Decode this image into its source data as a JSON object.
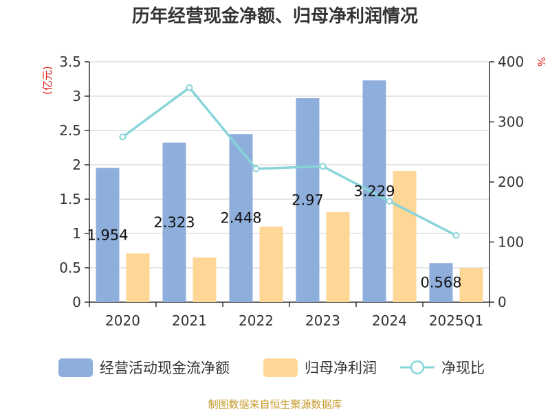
{
  "chart_data": {
    "type": "bar",
    "title": "历年经营现金净额、归母净利润情况",
    "categories": [
      "2020",
      "2021",
      "2022",
      "2023",
      "2024",
      "2025Q1"
    ],
    "series": [
      {
        "name": "经营活动现金流净额",
        "type": "bar",
        "axis": "left",
        "color": "#8eaedc",
        "values": [
          1.954,
          2.323,
          2.448,
          2.97,
          3.229,
          0.568
        ],
        "labels": [
          "1.954",
          "2.323",
          "2.448",
          "2.97",
          "3.229",
          "0.568"
        ]
      },
      {
        "name": "归母净利润",
        "type": "bar",
        "axis": "left",
        "color": "#fed796",
        "values": [
          0.71,
          0.65,
          1.1,
          1.31,
          1.91,
          0.5
        ]
      },
      {
        "name": "净现比",
        "type": "line",
        "axis": "right",
        "color": "#88d4d9",
        "values": [
          275,
          357,
          222,
          226,
          168,
          111
        ]
      }
    ],
    "left_axis": {
      "unit": "(亿元)",
      "min": 0,
      "max": 3.5,
      "ticks": [
        "0",
        "0.5",
        "1",
        "1.5",
        "2",
        "2.5",
        "3",
        "3.5"
      ]
    },
    "right_axis": {
      "unit": "%",
      "min": 0,
      "max": 400,
      "ticks": [
        "0",
        "100",
        "200",
        "300",
        "400"
      ]
    },
    "legend_position": "bottom",
    "grid": true
  },
  "footer": {
    "source": "制图数据来自恒生聚源数据库"
  }
}
